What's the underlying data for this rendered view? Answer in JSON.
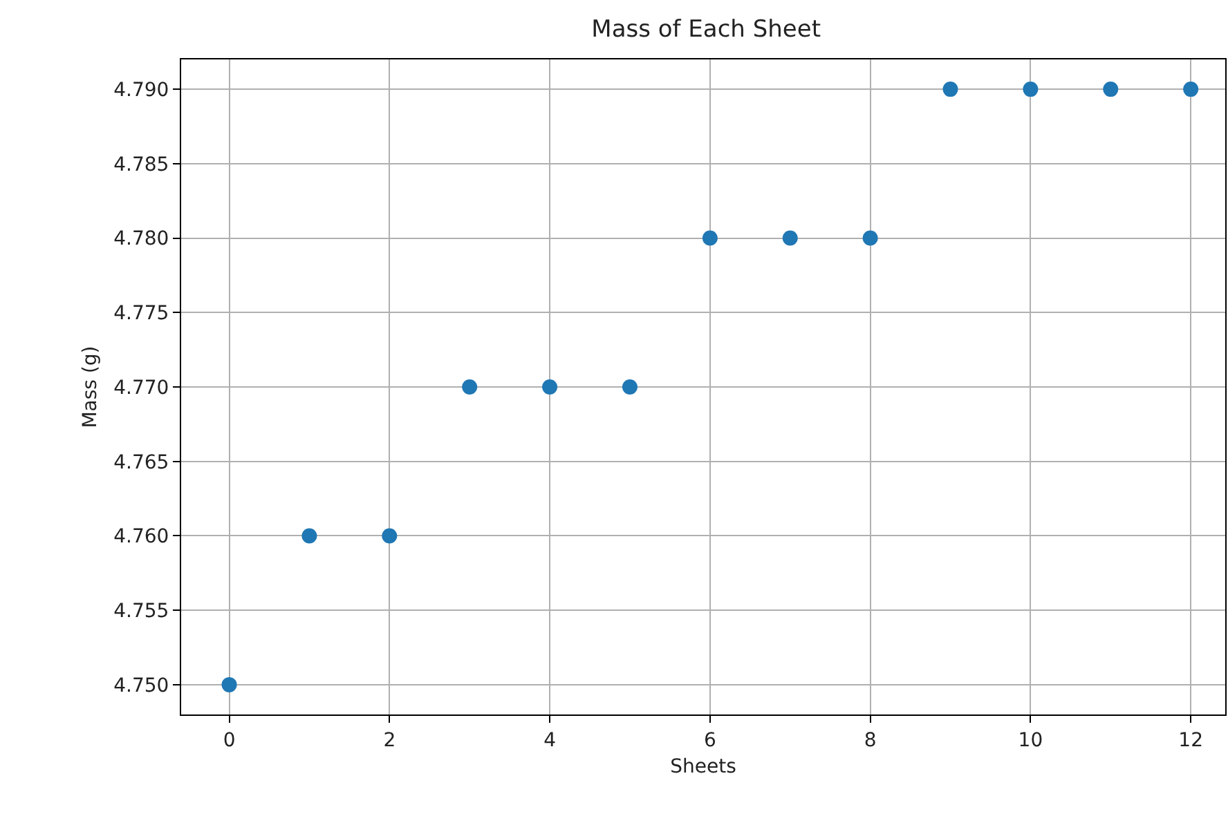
{
  "chart_data": {
    "type": "scatter",
    "title": "Mass of Each Sheet",
    "xlabel": "Sheets",
    "ylabel": "Mass (g)",
    "x": [
      0,
      1,
      2,
      3,
      4,
      5,
      6,
      7,
      8,
      9,
      10,
      11,
      12
    ],
    "series": [
      {
        "color": "#1f77b4",
        "values": [
          4.75,
          4.76,
          4.76,
          4.77,
          4.77,
          4.77,
          4.78,
          4.78,
          4.78,
          4.79,
          4.79,
          4.79,
          4.79
        ]
      }
    ],
    "xlim": [
      -0.6,
      12.43
    ],
    "ylim": [
      4.748,
      4.792
    ],
    "xticks": [
      0,
      2,
      4,
      6,
      8,
      10,
      12
    ],
    "yticks": [
      {
        "value": 4.75,
        "label": "4.750"
      },
      {
        "value": 4.755,
        "label": "4.755"
      },
      {
        "value": 4.76,
        "label": "4.760"
      },
      {
        "value": 4.765,
        "label": "4.765"
      },
      {
        "value": 4.77,
        "label": "4.770"
      },
      {
        "value": 4.775,
        "label": "4.775"
      },
      {
        "value": 4.78,
        "label": "4.780"
      },
      {
        "value": 4.785,
        "label": "4.785"
      },
      {
        "value": 4.79,
        "label": "4.790"
      }
    ],
    "grid": true,
    "marker": "circle"
  }
}
